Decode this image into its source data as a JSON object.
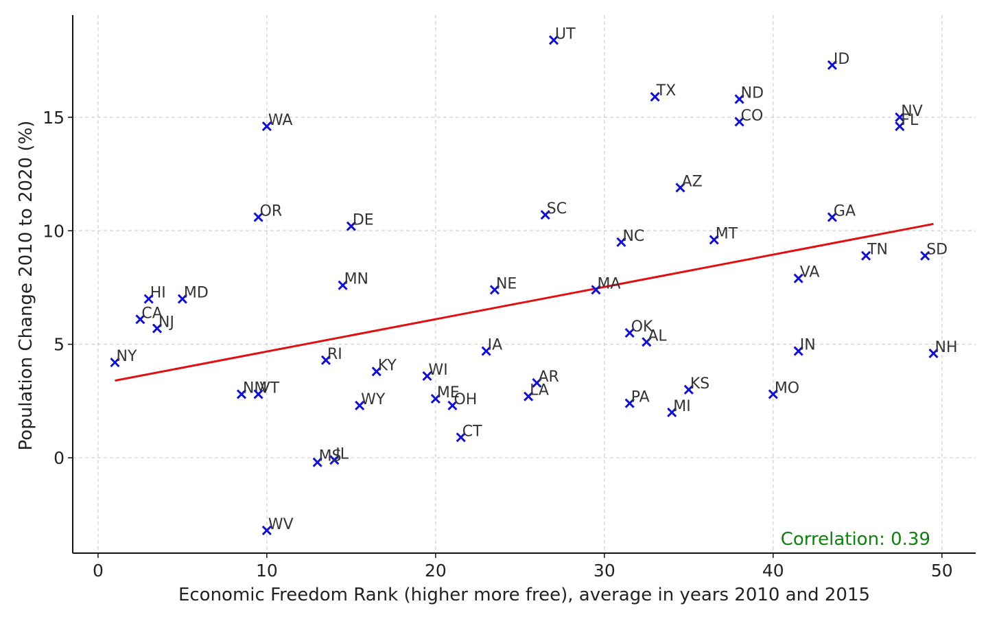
{
  "chart_data": {
    "type": "scatter",
    "title": "",
    "xlabel": "Economic Freedom Rank (higher more free), average in years 2010 and 2015",
    "ylabel": "Population Change 2010 to 2020 (%)",
    "xlim": [
      -1.5,
      52
    ],
    "ylim": [
      -4.2,
      19.5
    ],
    "xticks": [
      0,
      10,
      20,
      30,
      40,
      50
    ],
    "yticks": [
      0,
      5,
      10,
      15
    ],
    "grid": true,
    "marker_color": "#1010d0",
    "trend_color": "#e01010",
    "annotation_color": "#108010",
    "trendline": {
      "x": [
        1,
        49.5
      ],
      "y": [
        3.4,
        10.3
      ]
    },
    "annotation": "Correlation: 0.39",
    "points": [
      {
        "label": "UT",
        "x": 27,
        "y": 18.4
      },
      {
        "label": "ID",
        "x": 43.5,
        "y": 17.3
      },
      {
        "label": "TX",
        "x": 33,
        "y": 15.9
      },
      {
        "label": "ND",
        "x": 38,
        "y": 15.8
      },
      {
        "label": "NV",
        "x": 47.5,
        "y": 15.0
      },
      {
        "label": "FL",
        "x": 47.5,
        "y": 14.6
      },
      {
        "label": "CO",
        "x": 38,
        "y": 14.8
      },
      {
        "label": "WA",
        "x": 10,
        "y": 14.6
      },
      {
        "label": "AZ",
        "x": 34.5,
        "y": 11.9
      },
      {
        "label": "SC",
        "x": 26.5,
        "y": 10.7
      },
      {
        "label": "OR",
        "x": 9.5,
        "y": 10.6
      },
      {
        "label": "GA",
        "x": 43.5,
        "y": 10.6
      },
      {
        "label": "DE",
        "x": 15,
        "y": 10.2
      },
      {
        "label": "NC",
        "x": 31,
        "y": 9.5
      },
      {
        "label": "MT",
        "x": 36.5,
        "y": 9.6
      },
      {
        "label": "TN",
        "x": 45.5,
        "y": 8.9
      },
      {
        "label": "SD",
        "x": 49,
        "y": 8.9
      },
      {
        "label": "VA",
        "x": 41.5,
        "y": 7.9
      },
      {
        "label": "MN",
        "x": 14.5,
        "y": 7.6
      },
      {
        "label": "NE",
        "x": 23.5,
        "y": 7.4
      },
      {
        "label": "MA",
        "x": 29.5,
        "y": 7.4
      },
      {
        "label": "HI",
        "x": 3,
        "y": 7.0
      },
      {
        "label": "MD",
        "x": 5,
        "y": 7.0
      },
      {
        "label": "CA",
        "x": 2.5,
        "y": 6.1
      },
      {
        "label": "NJ",
        "x": 3.5,
        "y": 5.7
      },
      {
        "label": "OK",
        "x": 31.5,
        "y": 5.5
      },
      {
        "label": "AL",
        "x": 32.5,
        "y": 5.1
      },
      {
        "label": "IA",
        "x": 23,
        "y": 4.7
      },
      {
        "label": "IN",
        "x": 41.5,
        "y": 4.7
      },
      {
        "label": "NH",
        "x": 49.5,
        "y": 4.6
      },
      {
        "label": "RI",
        "x": 13.5,
        "y": 4.3
      },
      {
        "label": "NY",
        "x": 1,
        "y": 4.2
      },
      {
        "label": "KY",
        "x": 16.5,
        "y": 3.8
      },
      {
        "label": "WI",
        "x": 19.5,
        "y": 3.6
      },
      {
        "label": "AR",
        "x": 26,
        "y": 3.3
      },
      {
        "label": "KS",
        "x": 35,
        "y": 3.0
      },
      {
        "label": "NM",
        "x": 8.5,
        "y": 2.8
      },
      {
        "label": "VT",
        "x": 9.5,
        "y": 2.8
      },
      {
        "label": "MO",
        "x": 40,
        "y": 2.8
      },
      {
        "label": "LA",
        "x": 25.5,
        "y": 2.7
      },
      {
        "label": "ME",
        "x": 20,
        "y": 2.6
      },
      {
        "label": "PA",
        "x": 31.5,
        "y": 2.4
      },
      {
        "label": "WY",
        "x": 15.5,
        "y": 2.3
      },
      {
        "label": "OH",
        "x": 21,
        "y": 2.3
      },
      {
        "label": "MI",
        "x": 34,
        "y": 2.0
      },
      {
        "label": "CT",
        "x": 21.5,
        "y": 0.9
      },
      {
        "label": "IL",
        "x": 14,
        "y": -0.1
      },
      {
        "label": "MS",
        "x": 13,
        "y": -0.2
      },
      {
        "label": "WV",
        "x": 10,
        "y": -3.2
      }
    ]
  }
}
